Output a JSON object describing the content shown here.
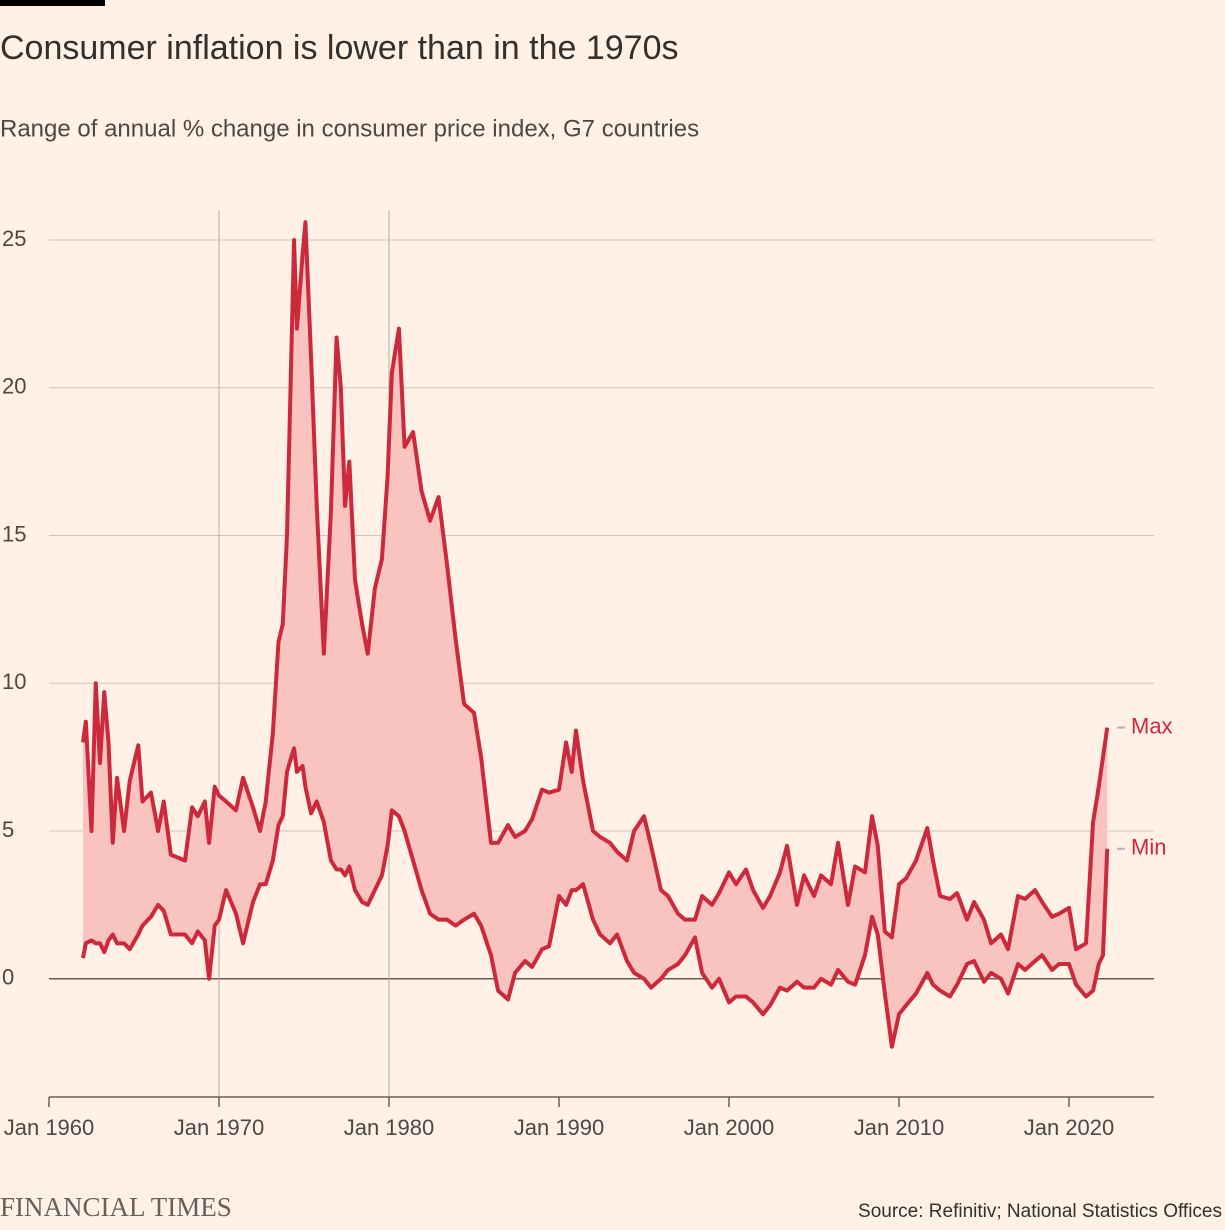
{
  "chart_data": {
    "type": "line",
    "title": "Consumer inflation is lower than in the 1970s",
    "subtitle": "Range of annual % change in consumer price index, G7 countries",
    "source": "Source: Refinitiv; National Statistics Offices",
    "brand": "FINANCIAL TIMES",
    "x": [
      "1962-01",
      "1962-03",
      "1962-07",
      "1962-10",
      "1963-01",
      "1963-04",
      "1963-07",
      "1963-10",
      "1964-01",
      "1964-06",
      "1964-10",
      "1965-04",
      "1965-07",
      "1966-01",
      "1966-06",
      "1966-10",
      "1967-03",
      "1968-01",
      "1968-06",
      "1968-10",
      "1969-03",
      "1969-06",
      "1969-10",
      "1970-01",
      "1970-06",
      "1971-01",
      "1971-06",
      "1972-01",
      "1972-06",
      "1972-10",
      "1973-03",
      "1973-07",
      "1973-10",
      "1974-01",
      "1974-04",
      "1974-06",
      "1974-08",
      "1974-12",
      "1975-02",
      "1975-06",
      "1975-10",
      "1976-03",
      "1976-08",
      "1976-12",
      "1977-03",
      "1977-06",
      "1977-09",
      "1978-01",
      "1978-06",
      "1978-10",
      "1979-03",
      "1979-08",
      "1979-12",
      "1980-03",
      "1980-08",
      "1980-12",
      "1981-06",
      "1981-12",
      "1982-06",
      "1982-12",
      "1983-06",
      "1983-12",
      "1984-06",
      "1985-01",
      "1985-06",
      "1986-01",
      "1986-06",
      "1987-01",
      "1987-06",
      "1988-01",
      "1988-06",
      "1989-01",
      "1989-06",
      "1990-01",
      "1990-06",
      "1990-10",
      "1991-01",
      "1991-06",
      "1992-01",
      "1992-06",
      "1993-01",
      "1993-06",
      "1994-01",
      "1994-06",
      "1995-01",
      "1995-06",
      "1996-01",
      "1996-06",
      "1997-01",
      "1997-06",
      "1998-01",
      "1998-06",
      "1999-01",
      "1999-06",
      "2000-01",
      "2000-06",
      "2001-01",
      "2001-06",
      "2002-01",
      "2002-06",
      "2003-01",
      "2003-06",
      "2004-01",
      "2004-06",
      "2005-01",
      "2005-06",
      "2006-01",
      "2006-06",
      "2007-01",
      "2007-06",
      "2008-01",
      "2008-06",
      "2008-10",
      "2009-03",
      "2009-08",
      "2010-01",
      "2010-06",
      "2011-01",
      "2011-09",
      "2012-01",
      "2012-06",
      "2013-01",
      "2013-06",
      "2014-01",
      "2014-06",
      "2015-01",
      "2015-06",
      "2016-01",
      "2016-06",
      "2017-01",
      "2017-06",
      "2018-01",
      "2018-06",
      "2019-01",
      "2019-06",
      "2020-01",
      "2020-06",
      "2021-01",
      "2021-06",
      "2021-10",
      "2022-01",
      "2022-04"
    ],
    "series": [
      {
        "name": "Max",
        "color": "#cc2a3c",
        "values": [
          8.0,
          8.7,
          5.0,
          10.0,
          7.3,
          9.7,
          8.0,
          4.6,
          6.8,
          5.0,
          6.7,
          7.9,
          6.0,
          6.3,
          5.0,
          6.0,
          4.2,
          4.0,
          5.8,
          5.5,
          6.0,
          4.6,
          6.5,
          6.2,
          6.0,
          5.7,
          6.8,
          5.8,
          5.0,
          6.0,
          8.3,
          11.4,
          12.0,
          15.0,
          21.0,
          25.0,
          22.0,
          24.5,
          25.6,
          21.0,
          16.0,
          11.0,
          15.8,
          21.7,
          20.0,
          16.0,
          17.5,
          13.5,
          12.0,
          11.0,
          13.2,
          14.2,
          17.0,
          20.5,
          22.0,
          18.0,
          18.5,
          16.5,
          15.5,
          16.3,
          14.0,
          11.5,
          9.3,
          9.0,
          7.5,
          4.6,
          4.6,
          5.2,
          4.8,
          5.0,
          5.4,
          6.4,
          6.3,
          6.4,
          8.0,
          7.0,
          8.4,
          6.7,
          5.0,
          4.8,
          4.6,
          4.3,
          4.0,
          5.0,
          5.5,
          4.5,
          3.0,
          2.8,
          2.2,
          2.0,
          2.0,
          2.8,
          2.5,
          2.9,
          3.6,
          3.2,
          3.7,
          3.0,
          2.4,
          2.8,
          3.6,
          4.5,
          2.5,
          3.5,
          2.8,
          3.5,
          3.2,
          4.6,
          2.5,
          3.8,
          3.6,
          5.5,
          4.5,
          1.6,
          1.4,
          3.2,
          3.4,
          4.0,
          5.1,
          4.0,
          2.8,
          2.7,
          2.9,
          2.0,
          2.6,
          2.0,
          1.2,
          1.5,
          1.0,
          2.8,
          2.7,
          3.0,
          2.6,
          2.1,
          2.2,
          2.4,
          1.0,
          1.2,
          5.3,
          6.5,
          7.5,
          8.5
        ]
      },
      {
        "name": "Min",
        "color": "#cc2a3c",
        "values": [
          0.7,
          1.2,
          1.3,
          1.2,
          1.2,
          0.9,
          1.3,
          1.5,
          1.2,
          1.2,
          1.0,
          1.5,
          1.8,
          2.1,
          2.5,
          2.3,
          1.5,
          1.5,
          1.2,
          1.6,
          1.3,
          0.0,
          1.8,
          2.0,
          3.0,
          2.2,
          1.2,
          2.6,
          3.2,
          3.2,
          4.0,
          5.2,
          5.5,
          7.0,
          7.5,
          7.8,
          7.0,
          7.2,
          6.5,
          5.6,
          6.0,
          5.3,
          4.0,
          3.7,
          3.7,
          3.5,
          3.8,
          3.0,
          2.6,
          2.5,
          3.0,
          3.5,
          4.5,
          5.7,
          5.5,
          5.0,
          4.0,
          3.0,
          2.2,
          2.0,
          2.0,
          1.8,
          2.0,
          2.2,
          1.8,
          0.8,
          -0.4,
          -0.7,
          0.2,
          0.6,
          0.4,
          1.0,
          1.1,
          2.8,
          2.5,
          3.0,
          3.0,
          3.2,
          2.0,
          1.5,
          1.2,
          1.5,
          0.6,
          0.2,
          0.0,
          -0.3,
          0.0,
          0.3,
          0.5,
          0.8,
          1.4,
          0.2,
          -0.3,
          0.0,
          -0.8,
          -0.6,
          -0.6,
          -0.8,
          -1.2,
          -0.9,
          -0.3,
          -0.4,
          -0.1,
          -0.3,
          -0.3,
          0.0,
          -0.2,
          0.3,
          -0.1,
          -0.2,
          0.8,
          2.1,
          1.5,
          -0.5,
          -2.3,
          -1.2,
          -0.9,
          -0.5,
          0.2,
          -0.2,
          -0.4,
          -0.6,
          -0.2,
          0.5,
          0.6,
          -0.1,
          0.2,
          0.0,
          -0.5,
          0.5,
          0.3,
          0.6,
          0.8,
          0.3,
          0.5,
          0.5,
          -0.2,
          -0.6,
          -0.4,
          0.5,
          0.8,
          4.4
        ]
      }
    ],
    "band_color": "#f9c4bf",
    "xlim": [
      "1960-01",
      "2025-01"
    ],
    "xticks": [
      {
        "value": "1960-01",
        "label": "Jan 1960"
      },
      {
        "value": "1970-01",
        "label": "Jan 1970"
      },
      {
        "value": "1980-01",
        "label": "Jan 1980"
      },
      {
        "value": "1990-01",
        "label": "Jan 1990"
      },
      {
        "value": "2000-01",
        "label": "Jan 2000"
      },
      {
        "value": "2010-01",
        "label": "Jan 2010"
      },
      {
        "value": "2020-01",
        "label": "Jan 2020"
      }
    ],
    "ylim": [
      -4,
      26
    ],
    "yticks": [
      0,
      5,
      10,
      15,
      20,
      25
    ],
    "grid": true,
    "highlight_lines": [
      "1970-01",
      "1980-01"
    ]
  }
}
